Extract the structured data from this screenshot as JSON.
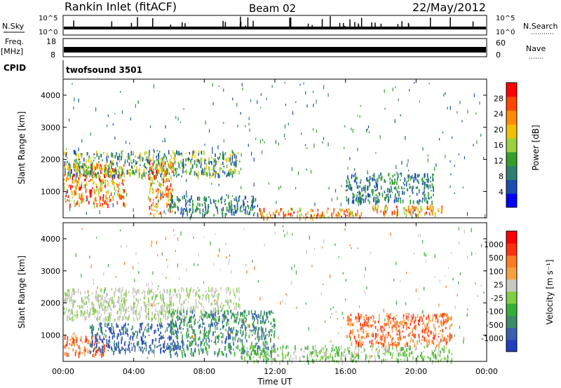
{
  "header": {
    "title": "Rankin Inlet (fitACF)",
    "beam": "Beam 02",
    "date": "22/May/2012"
  },
  "status_panels": {
    "nsky_label": "N.Sky",
    "nsky_ticks": [
      "10^5",
      "10^0"
    ],
    "nsearch_label": "N.Search",
    "nsearch_ticks": [
      "10^5",
      "10^0"
    ],
    "freq_label": "Freq.",
    "freq_unit": "[MHz]",
    "freq_ticks": [
      "18",
      "8"
    ],
    "nave_label": "Nave",
    "nave_ticks": [
      "60",
      "0"
    ],
    "cpid_label": "CPID",
    "cpid_value": "twofsound 3501"
  },
  "chart_data": [
    {
      "type": "heatmap",
      "name": "power",
      "ylabel": "Slant Range [km]",
      "ylim": [
        180,
        4500
      ],
      "yticks": [
        1000,
        2000,
        3000,
        4000
      ],
      "xlim": [
        0,
        24
      ],
      "colorbar": {
        "label": "Power [dB]",
        "ticks": [
          "28",
          "24",
          "20",
          "16",
          "12",
          "8",
          "4"
        ],
        "colors": [
          "#0000ff",
          "#1a4fb0",
          "#2f7f6f",
          "#33a02c",
          "#9ad13c",
          "#f2c200",
          "#ff8c00",
          "#ff4500",
          "#ff0000"
        ]
      },
      "regions": [
        {
          "t": [
            0,
            3.5
          ],
          "r": [
            600,
            1900
          ],
          "level": "high"
        },
        {
          "t": [
            0,
            10
          ],
          "r": [
            1500,
            2300
          ],
          "level": "mid"
        },
        {
          "t": [
            4.8,
            6.2
          ],
          "r": [
            300,
            2000
          ],
          "level": "high"
        },
        {
          "t": [
            6,
            11
          ],
          "r": [
            300,
            900
          ],
          "level": "low"
        },
        {
          "t": [
            11,
            17
          ],
          "r": [
            200,
            500
          ],
          "level": "high"
        },
        {
          "t": [
            17.5,
            21.5
          ],
          "r": [
            300,
            600
          ],
          "level": "high"
        },
        {
          "t": [
            16,
            21
          ],
          "r": [
            700,
            1600
          ],
          "level": "low"
        }
      ]
    },
    {
      "type": "heatmap",
      "name": "velocity",
      "ylabel": "Slant Range [km]",
      "ylim": [
        180,
        4500
      ],
      "yticks": [
        1000,
        2000,
        3000,
        4000
      ],
      "xlim": [
        0,
        24
      ],
      "xlabel": "Time UT",
      "xticks": [
        "00:00",
        "04:00",
        "08:00",
        "12:00",
        "16:00",
        "20:00",
        "00:00"
      ],
      "colorbar": {
        "label": "Velocity [m s⁻¹]",
        "ticks": [
          "1000",
          "500",
          "100",
          "25",
          "-25",
          "-100",
          "-500",
          "-1000"
        ],
        "colors": [
          "#1f3fbf",
          "#3a5fb0",
          "#3c8c6a",
          "#33b033",
          "#7fd040",
          "#c8c8c0",
          "#f6a040",
          "#ff7a20",
          "#ff3010",
          "#ff0000"
        ]
      },
      "regions": [
        {
          "t": [
            0,
            2.5
          ],
          "r": [
            400,
            1000
          ],
          "level": "orange"
        },
        {
          "t": [
            1.5,
            6.5
          ],
          "r": [
            500,
            1400
          ],
          "level": "blue"
        },
        {
          "t": [
            0,
            10
          ],
          "r": [
            1500,
            2500
          ],
          "level": "gray"
        },
        {
          "t": [
            6,
            12
          ],
          "r": [
            400,
            1800
          ],
          "level": "teal"
        },
        {
          "t": [
            10,
            22
          ],
          "r": [
            200,
            700
          ],
          "level": "green"
        },
        {
          "t": [
            16,
            22
          ],
          "r": [
            700,
            1700
          ],
          "level": "orange"
        }
      ]
    }
  ]
}
